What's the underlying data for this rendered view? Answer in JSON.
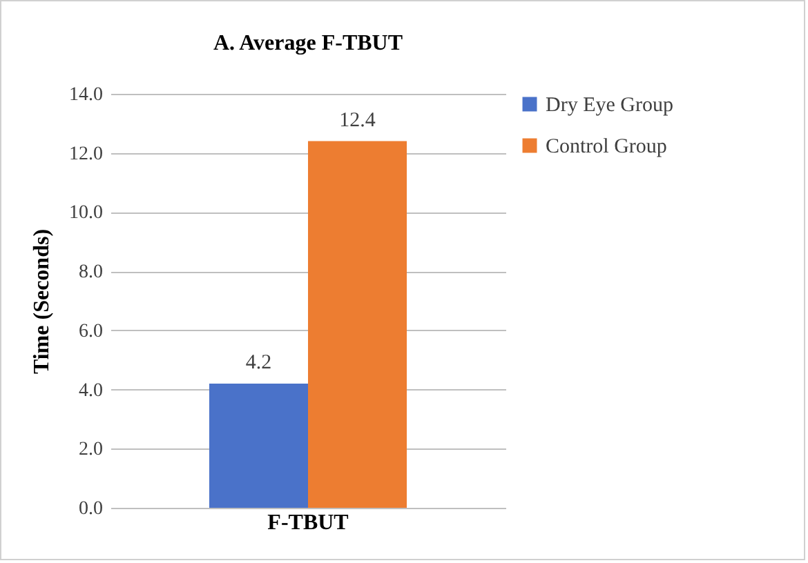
{
  "chart_data": {
    "type": "bar",
    "title": "A. Average F-TBUT",
    "ylabel": "Time (Seconds)",
    "categories": [
      "F-TBUT"
    ],
    "series": [
      {
        "name": "Dry Eye Group",
        "color": "#4a72c9",
        "values": [
          4.2
        ]
      },
      {
        "name": "Control Group",
        "color": "#ed7d31",
        "values": [
          12.4
        ]
      }
    ],
    "ylim": [
      0,
      14
    ],
    "yticks": [
      {
        "value": 0,
        "label": "0.0"
      },
      {
        "value": 2,
        "label": "2.0"
      },
      {
        "value": 4,
        "label": "4.0"
      },
      {
        "value": 6,
        "label": "6.0"
      },
      {
        "value": 8,
        "label": "8.0"
      },
      {
        "value": 10,
        "label": "10.0"
      },
      {
        "value": 12,
        "label": "12.0"
      },
      {
        "value": 14,
        "label": "14.0"
      }
    ],
    "grid": "y",
    "legend": "right",
    "data_labels": true
  }
}
